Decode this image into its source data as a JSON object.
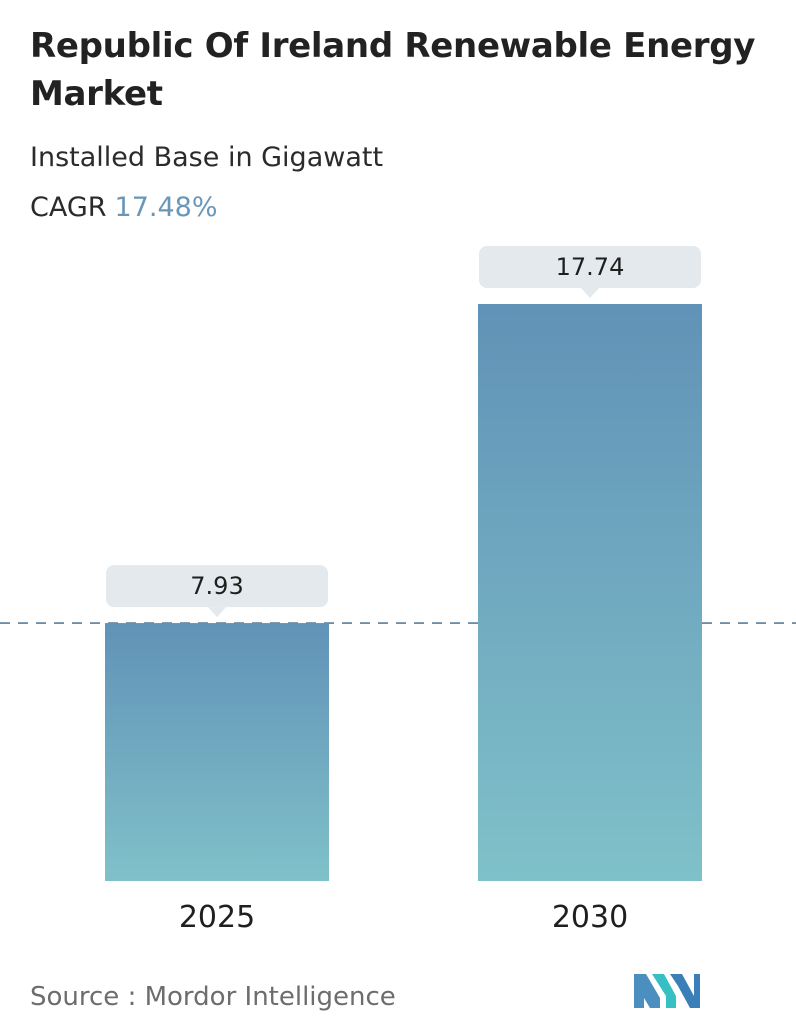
{
  "header": {
    "title": "Republic Of Ireland Renewable Energy Market",
    "subtitle": "Installed Base in Gigawatt",
    "cagr_label": "CAGR",
    "cagr_value": "17.48%"
  },
  "footer": {
    "source": "Source :  Mordor Intelligence",
    "logo_icon": "mordor-intelligence-logo-icon"
  },
  "colors": {
    "bar_top": "#6192b7",
    "bar_bottom": "#7fc1c9",
    "label_box": "#e3e9ec",
    "dashed_line": "#5a7e98",
    "cagr_accent": "#6a97b8"
  },
  "chart_data": {
    "type": "bar",
    "categories": [
      "2025",
      "2030"
    ],
    "values": [
      7.93,
      17.74
    ],
    "value_labels": [
      "7.93",
      "17.74"
    ],
    "title": "Republic Of Ireland Renewable Energy Market",
    "subtitle": "Installed Base in Gigawatt",
    "ylim": [
      0,
      17.74
    ],
    "grid": false,
    "legend": "none",
    "reference_line": {
      "value": 7.93,
      "style": "dashed"
    }
  }
}
